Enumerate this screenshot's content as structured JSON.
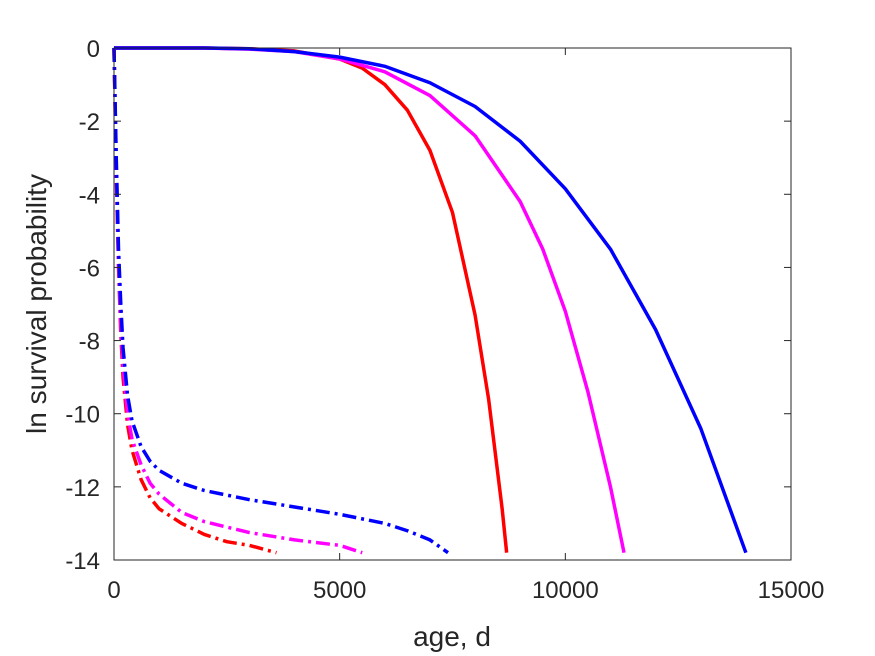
{
  "chart_data": {
    "type": "line",
    "title": "",
    "xlabel": "age, d",
    "ylabel": "ln survival probability",
    "xlim": [
      0,
      15000
    ],
    "ylim": [
      -14,
      0
    ],
    "xticks": [
      0,
      5000,
      10000,
      15000
    ],
    "xtick_labels": [
      "0",
      "5000",
      "10000",
      "15000"
    ],
    "yticks": [
      0,
      -2,
      -4,
      -6,
      -8,
      -10,
      -12,
      -14
    ],
    "ytick_labels": [
      "0",
      "-2",
      "-4",
      "-6",
      "-8",
      "-10",
      "-12",
      "-14"
    ],
    "grid": false,
    "legend": "none",
    "series": [
      {
        "color": "#ff0000",
        "style": "solid",
        "x": [
          0,
          1000,
          2000,
          3000,
          4000,
          5000,
          5500,
          6000,
          6500,
          7000,
          7500,
          8000,
          8300,
          8600,
          8700
        ],
        "y": [
          0,
          0,
          0,
          -0.02,
          -0.08,
          -0.3,
          -0.55,
          -1.0,
          -1.7,
          -2.8,
          -4.5,
          -7.3,
          -9.6,
          -12.6,
          -13.8
        ]
      },
      {
        "color": "#ff00ff",
        "style": "solid",
        "x": [
          0,
          2000,
          3000,
          4000,
          5000,
          6000,
          7000,
          8000,
          9000,
          9500,
          10000,
          10500,
          11000,
          11300
        ],
        "y": [
          0,
          0,
          -0.03,
          -0.1,
          -0.3,
          -0.65,
          -1.3,
          -2.4,
          -4.2,
          -5.5,
          -7.2,
          -9.4,
          -12.0,
          -13.8
        ]
      },
      {
        "color": "#0000ff",
        "style": "solid",
        "x": [
          0,
          2000,
          3000,
          4000,
          5000,
          6000,
          7000,
          8000,
          9000,
          10000,
          11000,
          12000,
          13000,
          14000
        ],
        "y": [
          0,
          0,
          -0.02,
          -0.1,
          -0.25,
          -0.5,
          -0.95,
          -1.6,
          -2.55,
          -3.85,
          -5.5,
          -7.7,
          -10.4,
          -13.8
        ]
      },
      {
        "color": "#ff0000",
        "style": "dashdot",
        "x": [
          0,
          50,
          100,
          150,
          200,
          300,
          400,
          600,
          800,
          1000,
          1500,
          2000,
          2500,
          3000,
          3600
        ],
        "y": [
          0,
          -3.5,
          -6.0,
          -7.8,
          -9.0,
          -10.3,
          -11.0,
          -11.8,
          -12.3,
          -12.6,
          -13.0,
          -13.3,
          -13.5,
          -13.6,
          -13.8
        ]
      },
      {
        "color": "#ff00ff",
        "style": "dashdot",
        "x": [
          0,
          50,
          100,
          150,
          200,
          300,
          400,
          600,
          800,
          1000,
          1500,
          2000,
          3000,
          4000,
          5000,
          5500
        ],
        "y": [
          0,
          -3.2,
          -5.8,
          -7.5,
          -8.7,
          -10.0,
          -10.7,
          -11.4,
          -11.9,
          -12.2,
          -12.7,
          -12.95,
          -13.25,
          -13.45,
          -13.6,
          -13.8
        ]
      },
      {
        "color": "#0000ff",
        "style": "dashdot",
        "x": [
          0,
          50,
          100,
          150,
          200,
          300,
          400,
          600,
          800,
          1000,
          1500,
          2000,
          3000,
          4000,
          5000,
          6000,
          6500,
          7000,
          7400
        ],
        "y": [
          0,
          -3.0,
          -5.5,
          -7.0,
          -8.2,
          -9.5,
          -10.2,
          -10.9,
          -11.3,
          -11.55,
          -11.9,
          -12.1,
          -12.35,
          -12.55,
          -12.75,
          -13.0,
          -13.2,
          -13.45,
          -13.8
        ]
      }
    ]
  }
}
